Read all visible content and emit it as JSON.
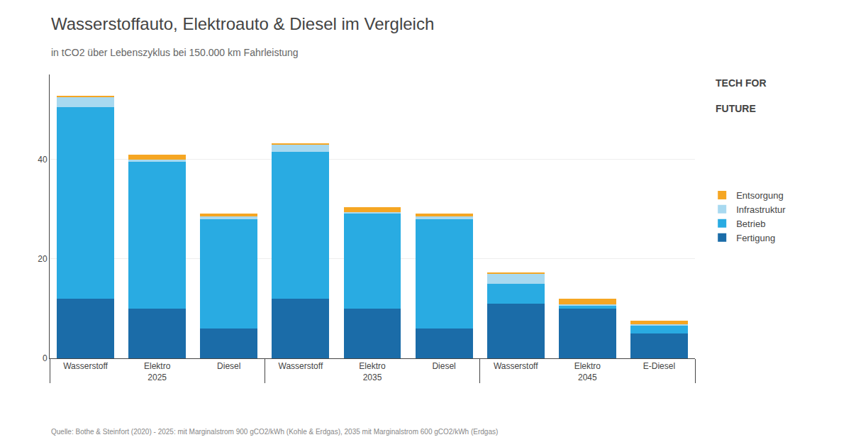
{
  "chart_data": {
    "type": "bar",
    "stacked": true,
    "title": "Wasserstoffauto, Elektroauto & Diesel im Vergleich",
    "subtitle": "in tCO2 über Lebenszyklus bei 150.000 km Fahrleistung",
    "source": "Quelle: Bothe & Steinfort (2020) - 2025: mit Marginalstrom 900 gCO2/kWh (Kohle & Erdgas), 2035 mit Marginalstrom 600 gCO2/kWh (Erdgas)",
    "groups": [
      "2025",
      "2025",
      "2025",
      "2035",
      "2035",
      "2035",
      "2045",
      "2045",
      "2045"
    ],
    "categories": [
      "Wasserstoff",
      "Elektro",
      "Diesel",
      "Wasserstoff",
      "Elektro",
      "Diesel",
      "Wasserstoff",
      "Elektro",
      "E-Diesel"
    ],
    "series": [
      {
        "name": "Fertigung",
        "color": "#1b6ca8",
        "values": [
          12,
          10,
          6,
          12,
          10,
          6,
          11,
          10,
          5
        ]
      },
      {
        "name": "Betrieb",
        "color": "#29abe2",
        "values": [
          38.5,
          29.5,
          22.0,
          29.5,
          19.0,
          22.0,
          4.0,
          0.5,
          1.5
        ]
      },
      {
        "name": "Infrastruktur",
        "color": "#a8d9f0",
        "values": [
          2.0,
          0.4,
          0.5,
          1.5,
          0.4,
          0.5,
          2.0,
          0.4,
          0.3
        ]
      },
      {
        "name": "Entsorgung",
        "color": "#f5a623",
        "values": [
          0.2,
          1.0,
          0.5,
          0.2,
          1.0,
          0.5,
          0.2,
          1.0,
          0.8
        ]
      }
    ],
    "annotations": [
      "TECH FOR",
      "FUTURE"
    ],
    "ylim": [
      0,
      57
    ],
    "yticks": [
      0,
      20,
      40
    ],
    "grid": true,
    "legend": "right"
  }
}
